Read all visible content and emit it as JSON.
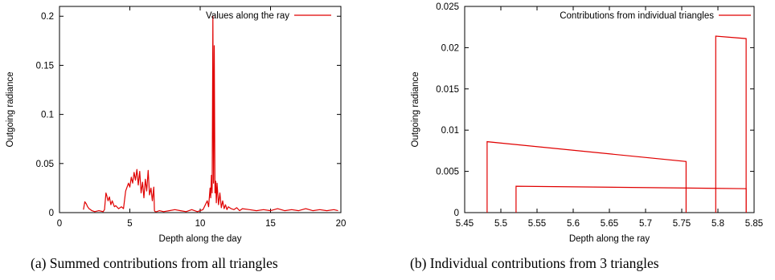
{
  "chart_data": [
    {
      "type": "line",
      "xlabel": "Depth along the day",
      "ylabel": "Outgoing radiance",
      "xlim": [
        0,
        20
      ],
      "ylim": [
        0,
        0.21
      ],
      "xticks": [
        "0",
        "5",
        "10",
        "15",
        "20"
      ],
      "xtick_values": [
        0,
        5,
        10,
        15,
        20
      ],
      "yticks": [
        "0",
        "0.05",
        "0.1",
        "0.15",
        "0.2"
      ],
      "ytick_values": [
        0,
        0.05,
        0.1,
        0.15,
        0.2
      ],
      "legend_position": "top-right",
      "grid": false,
      "color": "#e00000",
      "series": [
        {
          "name": "Values along the ray",
          "x": [
            1.7,
            1.8,
            1.9,
            2.0,
            2.1,
            2.2,
            2.3,
            2.5,
            2.8,
            3.1,
            3.2,
            3.3,
            3.35,
            3.45,
            3.55,
            3.65,
            3.75,
            3.9,
            4.0,
            4.2,
            4.4,
            4.55,
            4.7,
            4.9,
            5.0,
            5.1,
            5.2,
            5.3,
            5.4,
            5.5,
            5.6,
            5.7,
            5.8,
            5.9,
            6.0,
            6.1,
            6.2,
            6.3,
            6.4,
            6.5,
            6.6,
            6.7,
            6.75,
            6.8,
            6.9,
            7.1,
            7.4,
            7.8,
            8.2,
            8.6,
            9.0,
            9.4,
            9.8,
            10.2,
            10.5,
            10.6,
            10.7,
            10.75,
            10.8,
            10.85,
            10.9,
            10.95,
            11.0,
            11.05,
            11.1,
            11.15,
            11.2,
            11.3,
            11.4,
            11.5,
            11.6,
            11.7,
            11.8,
            11.9,
            12.0,
            12.2,
            12.4,
            12.6,
            12.8,
            13.0,
            13.5,
            14.0,
            14.5,
            15.0,
            15.5,
            16.0,
            16.5,
            17.0,
            17.5,
            18.0,
            18.5,
            19.0,
            19.5,
            19.8
          ],
          "y": [
            0.003,
            0.011,
            0.009,
            0.006,
            0.004,
            0.003,
            0.002,
            0.001,
            0.002,
            0.001,
            0.003,
            0.02,
            0.018,
            0.012,
            0.016,
            0.008,
            0.012,
            0.006,
            0.007,
            0.004,
            0.006,
            0.004,
            0.022,
            0.03,
            0.026,
            0.036,
            0.03,
            0.041,
            0.033,
            0.044,
            0.028,
            0.042,
            0.02,
            0.031,
            0.015,
            0.034,
            0.022,
            0.043,
            0.018,
            0.025,
            0.012,
            0.026,
            0.002,
            0.001,
            0.001,
            0.002,
            0.001,
            0.002,
            0.003,
            0.002,
            0.001,
            0.003,
            0.001,
            0.003,
            0.012,
            0.006,
            0.025,
            0.015,
            0.038,
            0.02,
            0.2,
            0.03,
            0.17,
            0.02,
            0.032,
            0.01,
            0.03,
            0.008,
            0.02,
            0.005,
            0.012,
            0.004,
            0.008,
            0.003,
            0.006,
            0.004,
            0.003,
            0.005,
            0.002,
            0.004,
            0.003,
            0.002,
            0.003,
            0.002,
            0.004,
            0.002,
            0.003,
            0.002,
            0.004,
            0.002,
            0.003,
            0.002,
            0.003,
            0.002
          ]
        }
      ]
    },
    {
      "type": "line",
      "xlabel": "Depth along the ray",
      "ylabel": "Outgoing radiance",
      "xlim": [
        5.45,
        5.85
      ],
      "ylim": [
        0,
        0.025
      ],
      "xticks": [
        "5.45",
        "5.5",
        "5.55",
        "5.6",
        "5.65",
        "5.7",
        "5.75",
        "5.8",
        "5.85"
      ],
      "xtick_values": [
        5.45,
        5.5,
        5.55,
        5.6,
        5.65,
        5.7,
        5.75,
        5.8,
        5.85
      ],
      "yticks": [
        "0",
        "0.005",
        "0.01",
        "0.015",
        "0.02",
        "0.025"
      ],
      "ytick_values": [
        0,
        0.005,
        0.01,
        0.015,
        0.02,
        0.025
      ],
      "legend_position": "top-right",
      "grid": false,
      "color": "#e00000",
      "series": [
        {
          "name": "Contributions from individual triangles",
          "segments": [
            {
              "x": [
                5.481,
                5.481,
                5.756,
                5.756
              ],
              "y": [
                0,
                0.0086,
                0.0062,
                0
              ]
            },
            {
              "x": [
                5.521,
                5.521,
                5.839,
                5.839
              ],
              "y": [
                0,
                0.0032,
                0.0029,
                0
              ]
            },
            {
              "x": [
                5.797,
                5.797,
                5.839,
                5.839
              ],
              "y": [
                0,
                0.0214,
                0.0211,
                0
              ]
            }
          ]
        }
      ]
    }
  ],
  "captions": {
    "a": "(a) Summed contributions from all triangles",
    "b": "(b) Individual contributions from 3 triangles"
  }
}
